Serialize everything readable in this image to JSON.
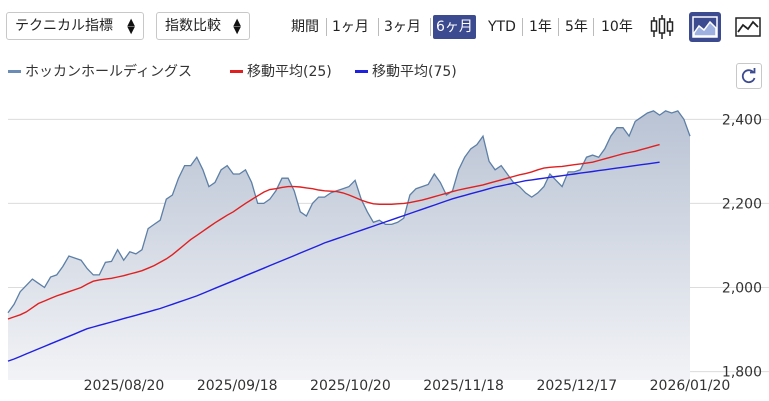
{
  "toolbar": {
    "technical_select": "テクニカル指標",
    "index_select": "指数比較",
    "periods": [
      "期間",
      "1ヶ月",
      "3ヶ月",
      "6ヶ月",
      "YTD",
      "1年",
      "5年",
      "10年"
    ],
    "active_period": "6ヶ月"
  },
  "legend": {
    "items": [
      {
        "label": "ホッカンホールディングス",
        "color": "#6b8cb4"
      },
      {
        "label": "移動平均(25)",
        "color": "#e02020"
      },
      {
        "label": "移動平均(75)",
        "color": "#2020e0"
      }
    ]
  },
  "chart_data": {
    "type": "line",
    "x_tick_labels": [
      "2025/08/20",
      "2025/09/18",
      "2025/10/20",
      "2025/11/18",
      "2025/12/17",
      "2026/01/20"
    ],
    "y_ticks": [
      1800,
      2000,
      2200,
      2400
    ],
    "ylim": [
      1780,
      2465
    ],
    "grid": true,
    "colors": {
      "price": "#5d7fa6",
      "ma25": "#e02020",
      "ma75": "#2020e0"
    },
    "series": [
      {
        "name": "ホッカンホールディングス",
        "values": [
          1940,
          1960,
          1990,
          2005,
          2020,
          2010,
          2000,
          2025,
          2030,
          2050,
          2075,
          2070,
          2065,
          2045,
          2030,
          2030,
          2060,
          2062,
          2090,
          2065,
          2085,
          2080,
          2090,
          2140,
          2150,
          2160,
          2210,
          2220,
          2260,
          2290,
          2290,
          2310,
          2280,
          2240,
          2250,
          2280,
          2290,
          2270,
          2270,
          2280,
          2250,
          2200,
          2200,
          2210,
          2230,
          2260,
          2260,
          2230,
          2180,
          2170,
          2200,
          2215,
          2215,
          2225,
          2230,
          2235,
          2240,
          2255,
          2210,
          2180,
          2155,
          2160,
          2150,
          2150,
          2155,
          2165,
          2220,
          2235,
          2240,
          2245,
          2270,
          2250,
          2220,
          2230,
          2280,
          2310,
          2330,
          2340,
          2360,
          2300,
          2280,
          2290,
          2270,
          2250,
          2240,
          2225,
          2215,
          2225,
          2240,
          2270,
          2255,
          2240,
          2275,
          2275,
          2280,
          2310,
          2315,
          2310,
          2330,
          2360,
          2380,
          2380,
          2360,
          2395,
          2405,
          2415,
          2420,
          2410,
          2420,
          2415,
          2420,
          2400,
          2360
        ]
      },
      {
        "name": "移動平均(25)",
        "values": [
          1925,
          1930,
          1935,
          1942,
          1952,
          1962,
          1968,
          1974,
          1980,
          1985,
          1990,
          1995,
          2000,
          2008,
          2015,
          2018,
          2020,
          2022,
          2025,
          2028,
          2032,
          2036,
          2040,
          2046,
          2052,
          2060,
          2068,
          2078,
          2090,
          2102,
          2114,
          2124,
          2134,
          2144,
          2154,
          2163,
          2172,
          2180,
          2190,
          2200,
          2209,
          2218,
          2227,
          2233,
          2235,
          2238,
          2240,
          2240,
          2239,
          2237,
          2235,
          2232,
          2230,
          2229,
          2228,
          2225,
          2220,
          2214,
          2208,
          2203,
          2199,
          2198,
          2198,
          2198,
          2199,
          2200,
          2202,
          2205,
          2208,
          2212,
          2216,
          2220,
          2224,
          2228,
          2232,
          2235,
          2238,
          2241,
          2244,
          2248,
          2252,
          2256,
          2260,
          2264,
          2268,
          2271,
          2275,
          2280,
          2284,
          2286,
          2287,
          2288,
          2290,
          2292,
          2294,
          2296,
          2298,
          2302,
          2306,
          2310,
          2314,
          2318,
          2321,
          2324,
          2328,
          2332,
          2336,
          2340
        ]
      },
      {
        "name": "移動平均(75)",
        "values": [
          1825,
          1830,
          1836,
          1842,
          1848,
          1854,
          1860,
          1866,
          1872,
          1878,
          1884,
          1890,
          1896,
          1902,
          1906,
          1910,
          1914,
          1918,
          1922,
          1926,
          1930,
          1934,
          1938,
          1942,
          1946,
          1950,
          1955,
          1960,
          1965,
          1970,
          1975,
          1980,
          1986,
          1992,
          1998,
          2004,
          2010,
          2016,
          2022,
          2028,
          2034,
          2040,
          2046,
          2052,
          2058,
          2064,
          2070,
          2076,
          2082,
          2088,
          2094,
          2100,
          2106,
          2111,
          2116,
          2121,
          2126,
          2131,
          2136,
          2141,
          2146,
          2151,
          2156,
          2161,
          2166,
          2171,
          2176,
          2181,
          2186,
          2191,
          2196,
          2201,
          2206,
          2211,
          2215,
          2219,
          2223,
          2227,
          2231,
          2235,
          2239,
          2242,
          2245,
          2248,
          2251,
          2254,
          2256,
          2258,
          2260,
          2262,
          2264,
          2266,
          2268,
          2270,
          2272,
          2274,
          2276,
          2278,
          2280,
          2282,
          2284,
          2286,
          2288,
          2290,
          2292,
          2294,
          2296,
          2298
        ]
      }
    ]
  }
}
